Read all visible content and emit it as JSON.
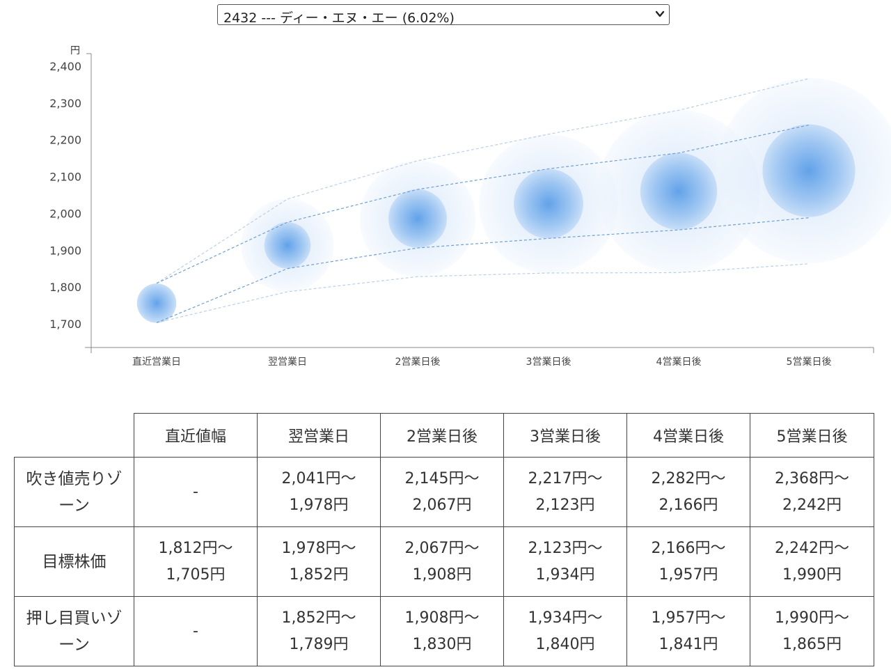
{
  "selector": {
    "value": "2432 --- ディー・エヌ・エー (6.02%)"
  },
  "colors": {
    "bubble": "#4a90e2",
    "axis": "#888888",
    "dash_mid": "#6e9fd4",
    "dash_outer": "#b9cfe8"
  },
  "chart_data": {
    "type": "scatter",
    "ylabel": "円",
    "ylim": [
      1650,
      2450
    ],
    "yticks": [
      "1,700",
      "1,800",
      "1,900",
      "2,000",
      "2,100",
      "2,200",
      "2,300",
      "2,400"
    ],
    "ytick_values": [
      1700,
      1800,
      1900,
      2000,
      2100,
      2200,
      2300,
      2400
    ],
    "categories": [
      "直近営業日",
      "翌営業日",
      "2営業日後",
      "3営業日後",
      "4営業日後",
      "5営業日後"
    ],
    "center": [
      1758,
      1915,
      1988,
      2028,
      2062,
      2118
    ],
    "target_high": [
      1812,
      1978,
      2067,
      2123,
      2166,
      2242
    ],
    "target_low": [
      1705,
      1852,
      1908,
      1934,
      1957,
      1990
    ],
    "zone_high": [
      1812,
      2041,
      2145,
      2217,
      2282,
      2368
    ],
    "zone_low": [
      1705,
      1789,
      1830,
      1840,
      1841,
      1865
    ],
    "grid": false
  },
  "table": {
    "headers": [
      "",
      "直近値幅",
      "翌営業日",
      "2営業日後",
      "3営業日後",
      "4営業日後",
      "5営業日後"
    ],
    "rows": [
      {
        "label": [
          "吹き値売りゾ",
          "ーン"
        ],
        "cells": [
          [
            "-"
          ],
          [
            "2,041円〜",
            "1,978円"
          ],
          [
            "2,145円〜",
            "2,067円"
          ],
          [
            "2,217円〜",
            "2,123円"
          ],
          [
            "2,282円〜",
            "2,166円"
          ],
          [
            "2,368円〜",
            "2,242円"
          ]
        ]
      },
      {
        "label": [
          "目標株価"
        ],
        "cells": [
          [
            "1,812円〜",
            "1,705円"
          ],
          [
            "1,978円〜",
            "1,852円"
          ],
          [
            "2,067円〜",
            "1,908円"
          ],
          [
            "2,123円〜",
            "1,934円"
          ],
          [
            "2,166円〜",
            "1,957円"
          ],
          [
            "2,242円〜",
            "1,990円"
          ]
        ]
      },
      {
        "label": [
          "押し目買いゾ",
          "ーン"
        ],
        "cells": [
          [
            "-"
          ],
          [
            "1,852円〜",
            "1,789円"
          ],
          [
            "1,908円〜",
            "1,830円"
          ],
          [
            "1,934円〜",
            "1,840円"
          ],
          [
            "1,957円〜",
            "1,841円"
          ],
          [
            "1,990円〜",
            "1,865円"
          ]
        ]
      }
    ]
  }
}
